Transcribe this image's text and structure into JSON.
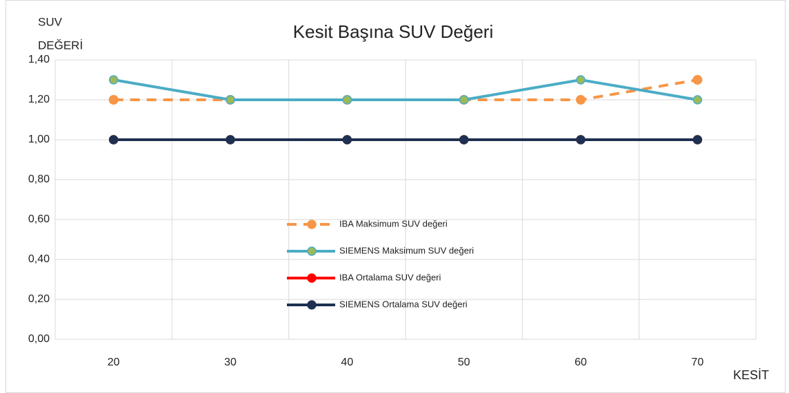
{
  "chart_data": {
    "type": "line",
    "title": "Kesit Başına SUV Değeri",
    "y_label": [
      "SUV",
      "DEĞERİ"
    ],
    "x_label": "KESİT",
    "categories": [
      "20",
      "30",
      "40",
      "50",
      "60",
      "70"
    ],
    "series": [
      {
        "name": "IBA Maksimum SUV değeri",
        "color": "#f79646",
        "marker_color": "#f79646",
        "dashed": true,
        "values": [
          1.2,
          1.2,
          1.2,
          1.2,
          1.2,
          1.3
        ]
      },
      {
        "name": "SIEMENS Maksimum SUV değeri",
        "color": "#4bacc6",
        "marker_color": "#9bbb59",
        "dashed": false,
        "values": [
          1.3,
          1.2,
          1.2,
          1.2,
          1.3,
          1.2
        ]
      },
      {
        "name": "IBA Ortalama SUV değeri",
        "color": "#ff0000",
        "marker_color": "#ff0000",
        "dashed": false,
        "values": [
          1.0,
          1.0,
          1.0,
          1.0,
          1.0,
          1.0
        ]
      },
      {
        "name": "SIEMENS Ortalama SUV değeri",
        "color": "#1f3050",
        "marker_color": "#1f3050",
        "dashed": false,
        "values": [
          1.0,
          1.0,
          1.0,
          1.0,
          1.0,
          1.0
        ]
      }
    ],
    "ylim": [
      0,
      1.4
    ],
    "yticks": [
      {
        "value": 0,
        "label": "0,00"
      },
      {
        "value": 0.2,
        "label": "0,20"
      },
      {
        "value": 0.4,
        "label": "0,40"
      },
      {
        "value": 0.6,
        "label": "0,60"
      },
      {
        "value": 0.8,
        "label": "0,80"
      },
      {
        "value": 1.0,
        "label": "1,00"
      },
      {
        "value": 1.2,
        "label": "1,20"
      },
      {
        "value": 1.4,
        "label": "1,40"
      }
    ],
    "grid": true,
    "legend": "center"
  }
}
